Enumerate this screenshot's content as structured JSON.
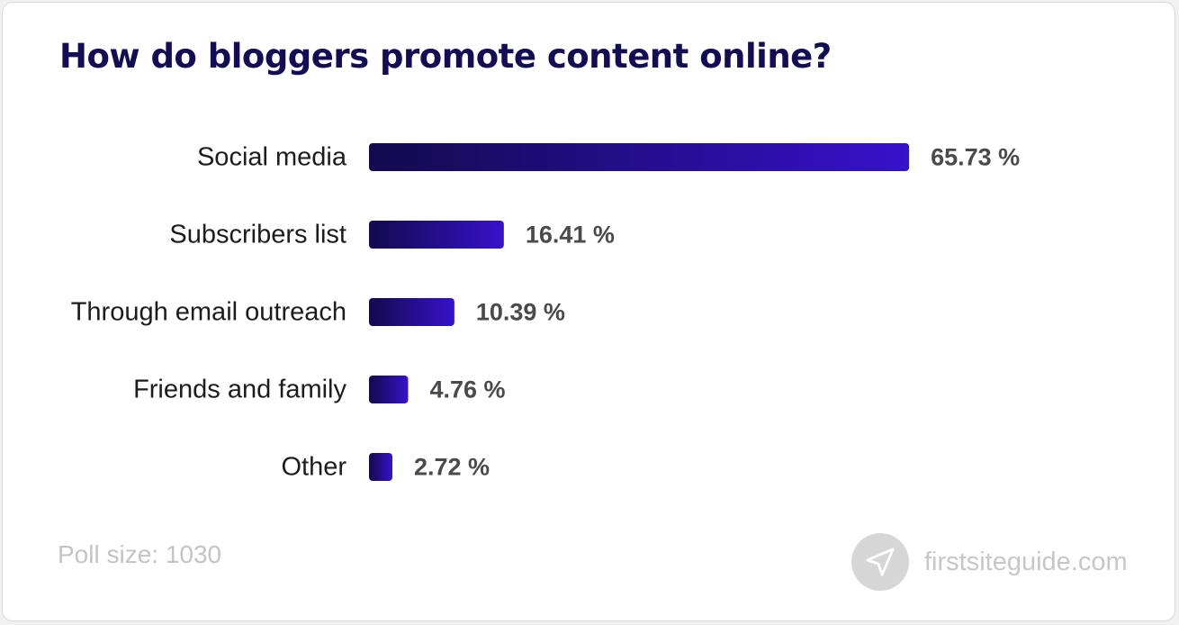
{
  "title": "How do bloggers promote content online?",
  "footnote": "Poll size: 1030",
  "brand": {
    "name": "firstsiteguide.com",
    "icon": "paper-plane-icon"
  },
  "colors": {
    "bar_start": "#130a4d",
    "bar_end": "#3512cc",
    "title": "#130d55"
  },
  "chart_data": {
    "type": "bar",
    "orientation": "horizontal",
    "title": "How do bloggers promote content online?",
    "categories": [
      "Social media",
      "Subscribers list",
      "Through email outreach",
      "Friends and family",
      "Other"
    ],
    "values": [
      65.73,
      16.41,
      10.39,
      4.76,
      2.72
    ],
    "value_labels": [
      "65.73 %",
      "16.41 %",
      "10.39 %",
      "4.76 %",
      "2.72 %"
    ],
    "unit": "%",
    "grid": false,
    "legend": "none"
  }
}
